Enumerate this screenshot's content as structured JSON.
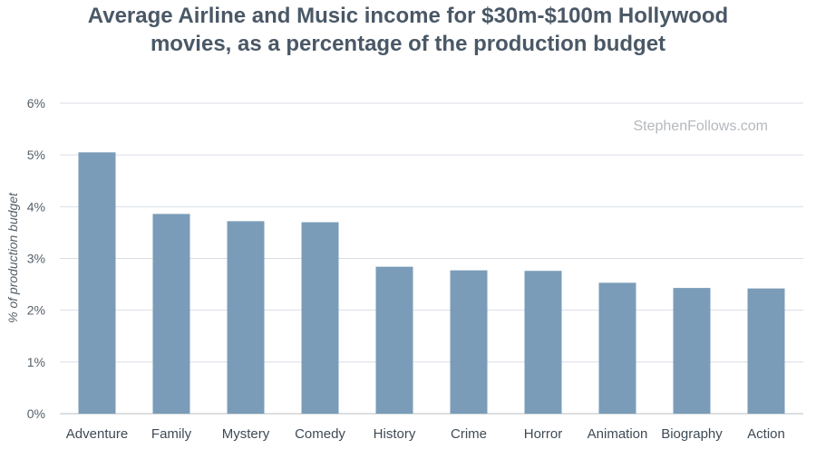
{
  "chart_data": {
    "type": "bar",
    "title_lines": [
      "Average Airline and Music income for $30m-$100m Hollywood",
      "movies, as a percentage of the production budget"
    ],
    "ylabel": "% of production budget",
    "xlabel": "",
    "watermark": "StephenFollows.com",
    "categories": [
      "Adventure",
      "Family",
      "Mystery",
      "Comedy",
      "History",
      "Crime",
      "Horror",
      "Animation",
      "Biography",
      "Action"
    ],
    "values": [
      5.05,
      3.86,
      3.72,
      3.7,
      2.84,
      2.77,
      2.76,
      2.53,
      2.43,
      2.42
    ],
    "ylim": [
      0,
      6
    ],
    "yticks": [
      0,
      1,
      2,
      3,
      4,
      5,
      6
    ],
    "ytick_labels": [
      "0%",
      "1%",
      "2%",
      "3%",
      "4%",
      "5%",
      "6%"
    ],
    "grid": true,
    "colors": {
      "bar": "#7a9cb8",
      "grid": "#d9dde6",
      "axis": "#b8bfc6",
      "title": "#4a5866"
    }
  }
}
